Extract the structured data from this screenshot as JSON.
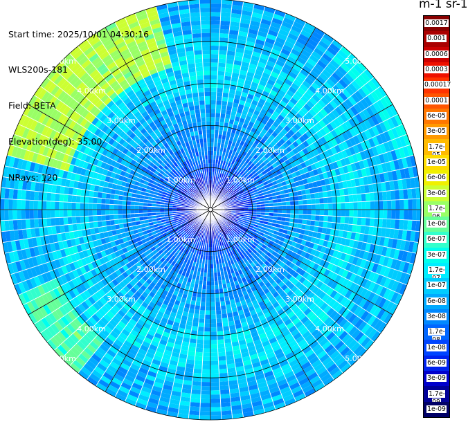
{
  "info": {
    "start_time": "Start time: 2025/10/01 04:30:16",
    "instrument": "WLS200s-181",
    "field": "Field: BETA",
    "elevation": "Elevation(deg): 35.00",
    "nrays": "NRays: 120"
  },
  "chart_data": {
    "type": "heatmap",
    "projection": "polar-ppi",
    "title": "",
    "nrays": 120,
    "elevation_deg": 35.0,
    "range_max_km": 5.0,
    "range_gate_km": 0.1,
    "range_rings_km": [
      1,
      2,
      3,
      4,
      5
    ],
    "spokes_deg": [
      0,
      30,
      60,
      90,
      120,
      150,
      180,
      210,
      240,
      270,
      300,
      330
    ],
    "ring_labels": [
      "1.00km",
      "2.00km",
      "3.00km",
      "4.00km",
      "5.00km"
    ],
    "ring_label_bearings_deg": [
      45,
      135,
      225,
      315
    ],
    "beta_profile_by_range": [
      {
        "range_km": 0.0,
        "beta": 3e-09
      },
      {
        "range_km": 0.5,
        "beta": 5e-09
      },
      {
        "range_km": 1.0,
        "beta": 2e-08
      },
      {
        "range_km": 1.5,
        "beta": 4e-08
      },
      {
        "range_km": 2.0,
        "beta": 6e-08
      },
      {
        "range_km": 2.5,
        "beta": 8e-08
      },
      {
        "range_km": 3.0,
        "beta": 1.5e-07
      },
      {
        "range_km": 3.5,
        "beta": 2e-07
      },
      {
        "range_km": 4.0,
        "beta": 1.2e-07
      },
      {
        "range_km": 4.5,
        "beta": 1e-07
      },
      {
        "range_km": 5.0,
        "beta": 8e-08
      }
    ],
    "enhanced_sectors": [
      {
        "from_deg": 285,
        "to_deg": 345,
        "range_km": [
          3.5,
          5.0
        ],
        "beta": 3e-06
      },
      {
        "from_deg": 220,
        "to_deg": 245,
        "range_km": [
          4.0,
          5.0
        ],
        "beta": 1e-06
      },
      {
        "from_deg": 40,
        "to_deg": 75,
        "range_km": [
          4.6,
          5.0
        ],
        "beta": 3e-07
      }
    ]
  },
  "colorbar": {
    "title": "m-1 sr-1",
    "levels": [
      {
        "label": "0.0017",
        "color": "#880000"
      },
      {
        "label": "0.001",
        "color": "#aa0000"
      },
      {
        "label": "0.0006",
        "color": "#cc0000"
      },
      {
        "label": "0.0003",
        "color": "#ee1100"
      },
      {
        "label": "0.00017",
        "color": "#ff3300"
      },
      {
        "label": "0.0001",
        "color": "#ff5500"
      },
      {
        "label": "6e-05",
        "color": "#ff7700"
      },
      {
        "label": "3e-05",
        "color": "#ff9900"
      },
      {
        "label": "1.7e-05",
        "color": "#ffbb00"
      },
      {
        "label": "1e-05",
        "color": "#ffdd00"
      },
      {
        "label": "6e-06",
        "color": "#f0f000"
      },
      {
        "label": "3e-06",
        "color": "#ccff33"
      },
      {
        "label": "1.7e-06",
        "color": "#99ff66"
      },
      {
        "label": "1e-06",
        "color": "#66ff99"
      },
      {
        "label": "6e-07",
        "color": "#33ffcc"
      },
      {
        "label": "3e-07",
        "color": "#00ffee"
      },
      {
        "label": "1.7e-07",
        "color": "#00eeff"
      },
      {
        "label": "1e-07",
        "color": "#00ccff"
      },
      {
        "label": "6e-08",
        "color": "#00aaff"
      },
      {
        "label": "3e-08",
        "color": "#0088ff"
      },
      {
        "label": "1.7e-08",
        "color": "#0066ff"
      },
      {
        "label": "1e-08",
        "color": "#0044ff"
      },
      {
        "label": "6e-09",
        "color": "#0022ee"
      },
      {
        "label": "3e-09",
        "color": "#0000cc"
      },
      {
        "label": "1.7e-09",
        "color": "#000099"
      },
      {
        "label": "1e-09",
        "color": "#000066"
      }
    ]
  }
}
